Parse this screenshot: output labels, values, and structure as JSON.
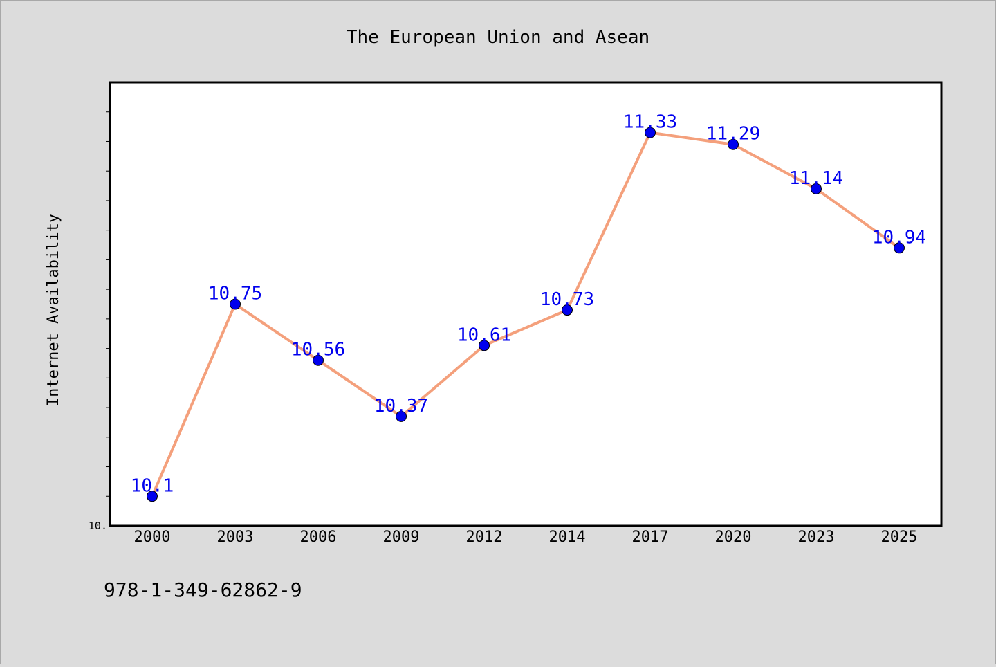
{
  "chart_data": {
    "type": "line",
    "title": "The European Union and Asean",
    "xlabel": "",
    "ylabel": "Internet Availability",
    "categories": [
      "2000",
      "2003",
      "2006",
      "2009",
      "2012",
      "2014",
      "2017",
      "2020",
      "2023",
      "2025"
    ],
    "series": [
      {
        "values": [
          10.1,
          10.75,
          10.56,
          10.37,
          10.61,
          10.73,
          11.33,
          11.29,
          11.14,
          10.94
        ],
        "labels": [
          "10.1",
          "10.75",
          "10.56",
          "10.37",
          "10.61",
          "10.73",
          "11.33",
          "11.29",
          "11.14",
          "10.94"
        ],
        "line_color": "#f4a07c",
        "marker_color": "#0000ee",
        "label_color": "#0000ee"
      }
    ],
    "ylim": [
      10.0,
      11.5
    ],
    "y_minor_step": 0.1,
    "y_tick_labels": [
      {
        "value": 10.0,
        "label": "10."
      }
    ],
    "grid": false,
    "legend": "none"
  },
  "footer": {
    "isbn": "978-1-349-62862-9"
  },
  "colors": {
    "background": "#dcdcdc",
    "plot_background": "#ffffff",
    "axis": "#000000"
  }
}
